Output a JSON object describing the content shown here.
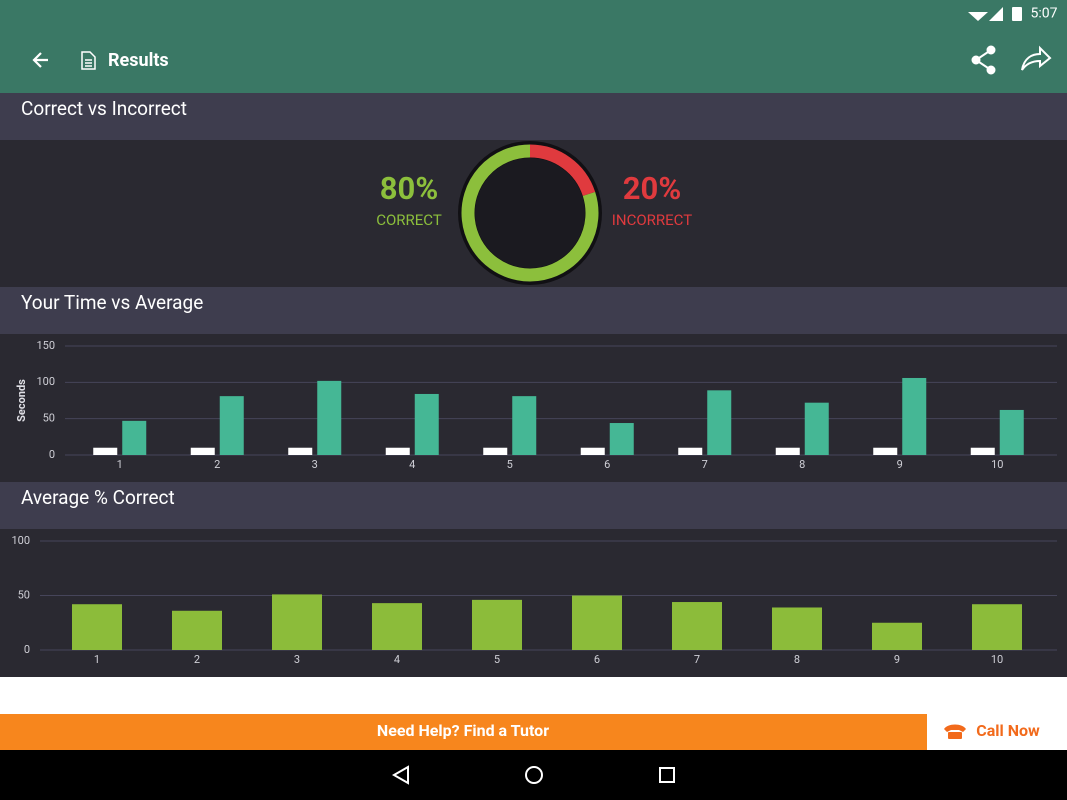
{
  "status_bar": {
    "time": "5:07"
  },
  "app_bar": {
    "title": "Results"
  },
  "chart_data": [
    {
      "type": "pie",
      "title": "Correct vs Incorrect",
      "categories": [
        "CORRECT",
        "INCORRECT"
      ],
      "values": [
        80,
        20
      ],
      "value_labels": [
        "80%",
        "20%"
      ],
      "colors": [
        "#8cbf3c",
        "#e03a3e"
      ]
    },
    {
      "type": "bar",
      "title": "Your Time vs Average",
      "y_label": "Seconds",
      "categories": [
        "1",
        "2",
        "3",
        "4",
        "5",
        "6",
        "7",
        "8",
        "9",
        "10"
      ],
      "series": [
        {
          "color": "#ffffff",
          "values": [
            10,
            10,
            10,
            10,
            10,
            10,
            10,
            10,
            10,
            10
          ]
        },
        {
          "color": "#45b795",
          "values": [
            47,
            81,
            102,
            84,
            81,
            44,
            89,
            72,
            106,
            62
          ]
        }
      ],
      "ylim": [
        0,
        150
      ],
      "yticks": [
        0,
        50,
        100,
        150
      ],
      "grid": true
    },
    {
      "type": "bar",
      "title": "Average % Correct",
      "categories": [
        "1",
        "2",
        "3",
        "4",
        "5",
        "6",
        "7",
        "8",
        "9",
        "10"
      ],
      "series": [
        {
          "color": "#8cbc3a",
          "values": [
            42,
            36,
            51,
            43,
            46,
            50,
            44,
            39,
            25,
            42
          ]
        }
      ],
      "ylim": [
        0,
        100
      ],
      "yticks": [
        0,
        50,
        100
      ],
      "grid": true
    }
  ],
  "banner": {
    "text": "Need Help? Find a Tutor",
    "button": "Call Now"
  }
}
